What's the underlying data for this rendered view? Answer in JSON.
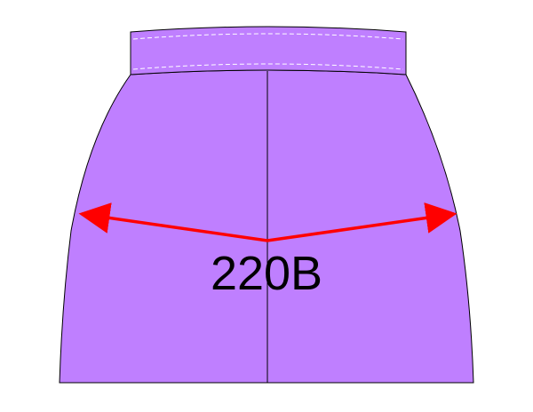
{
  "diagram": {
    "measurement_label": "220B",
    "colors": {
      "garment_fill": "#bf7fff",
      "outline": "#000000",
      "arrow": "#ff0000",
      "stitch": "#ffffff",
      "background": "#ffffff"
    }
  }
}
